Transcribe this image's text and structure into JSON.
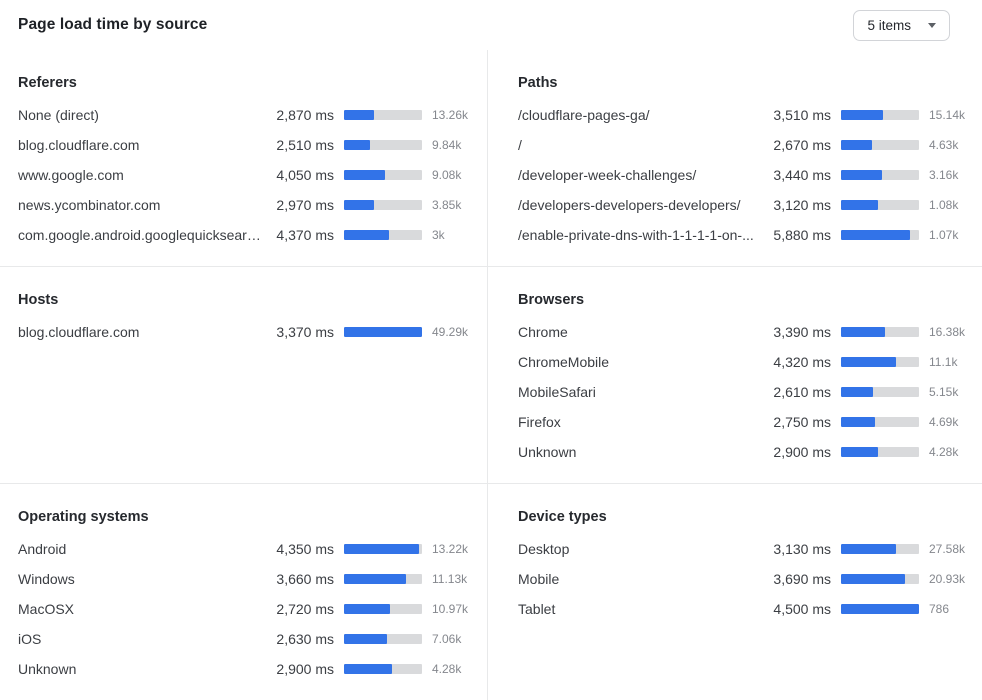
{
  "header": {
    "title": "Page load time by source",
    "items_select": {
      "value": "5 items"
    }
  },
  "colors": {
    "bar_fill": "#3273e8",
    "bar_track": "#d9dadc"
  },
  "panels": [
    {
      "id": "referers",
      "title": "Referers",
      "rows": [
        {
          "label": "None (direct)",
          "ms": "2,870 ms",
          "bar_pct": 38,
          "count": "13.26k"
        },
        {
          "label": "blog.cloudflare.com",
          "ms": "2,510 ms",
          "bar_pct": 33,
          "count": "9.84k"
        },
        {
          "label": "www.google.com",
          "ms": "4,050 ms",
          "bar_pct": 53,
          "count": "9.08k"
        },
        {
          "label": "news.ycombinator.com",
          "ms": "2,970 ms",
          "bar_pct": 39,
          "count": "3.85k"
        },
        {
          "label": "com.google.android.googlequicksearc...",
          "ms": "4,370 ms",
          "bar_pct": 58,
          "count": "3k"
        }
      ]
    },
    {
      "id": "paths",
      "title": "Paths",
      "rows": [
        {
          "label": "/cloudflare-pages-ga/",
          "ms": "3,510 ms",
          "bar_pct": 54,
          "count": "15.14k"
        },
        {
          "label": "/",
          "ms": "2,670 ms",
          "bar_pct": 40,
          "count": "4.63k"
        },
        {
          "label": "/developer-week-challenges/",
          "ms": "3,440 ms",
          "bar_pct": 52,
          "count": "3.16k"
        },
        {
          "label": "/developers-developers-developers/",
          "ms": "3,120 ms",
          "bar_pct": 47,
          "count": "1.08k"
        },
        {
          "label": "/enable-private-dns-with-1-1-1-1-on-...",
          "ms": "5,880 ms",
          "bar_pct": 89,
          "count": "1.07k"
        }
      ]
    },
    {
      "id": "hosts",
      "title": "Hosts",
      "rows": [
        {
          "label": "blog.cloudflare.com",
          "ms": "3,370 ms",
          "bar_pct": 100,
          "count": "49.29k"
        }
      ]
    },
    {
      "id": "browsers",
      "title": "Browsers",
      "rows": [
        {
          "label": "Chrome",
          "ms": "3,390 ms",
          "bar_pct": 56,
          "count": "16.38k"
        },
        {
          "label": "ChromeMobile",
          "ms": "4,320 ms",
          "bar_pct": 71,
          "count": "11.1k"
        },
        {
          "label": "MobileSafari",
          "ms": "2,610 ms",
          "bar_pct": 41,
          "count": "5.15k"
        },
        {
          "label": "Firefox",
          "ms": "2,750 ms",
          "bar_pct": 44,
          "count": "4.69k"
        },
        {
          "label": "Unknown",
          "ms": "2,900 ms",
          "bar_pct": 48,
          "count": "4.28k"
        }
      ]
    },
    {
      "id": "operating-systems",
      "title": "Operating systems",
      "rows": [
        {
          "label": "Android",
          "ms": "4,350 ms",
          "bar_pct": 96,
          "count": "13.22k"
        },
        {
          "label": "Windows",
          "ms": "3,660 ms",
          "bar_pct": 79,
          "count": "11.13k"
        },
        {
          "label": "MacOSX",
          "ms": "2,720 ms",
          "bar_pct": 59,
          "count": "10.97k"
        },
        {
          "label": "iOS",
          "ms": "2,630 ms",
          "bar_pct": 55,
          "count": "7.06k"
        },
        {
          "label": "Unknown",
          "ms": "2,900 ms",
          "bar_pct": 62,
          "count": "4.28k"
        }
      ]
    },
    {
      "id": "device-types",
      "title": "Device types",
      "rows": [
        {
          "label": "Desktop",
          "ms": "3,130 ms",
          "bar_pct": 70,
          "count": "27.58k"
        },
        {
          "label": "Mobile",
          "ms": "3,690 ms",
          "bar_pct": 82,
          "count": "20.93k"
        },
        {
          "label": "Tablet",
          "ms": "4,500 ms",
          "bar_pct": 100,
          "count": "786"
        }
      ]
    }
  ]
}
